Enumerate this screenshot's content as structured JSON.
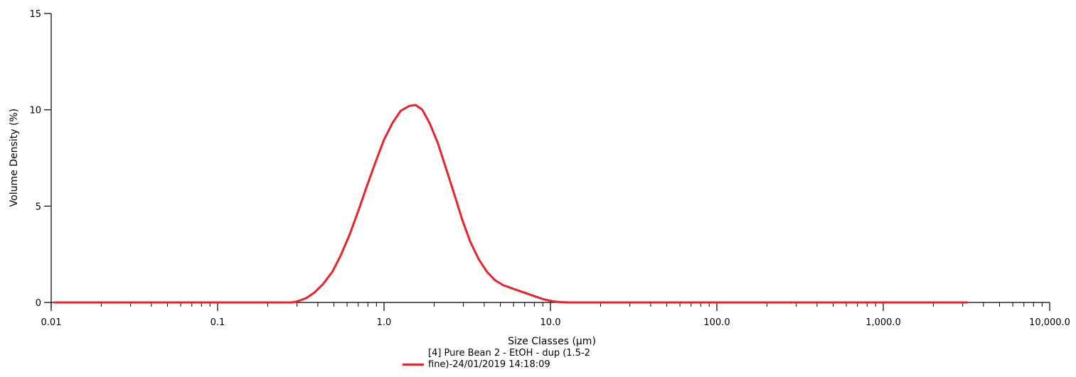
{
  "chart_data": {
    "type": "line",
    "xlabel": "Size Classes (μm)",
    "ylabel": "Volume Density (%)",
    "xscale": "log",
    "xlim": [
      0.01,
      10000
    ],
    "ylim": [
      0,
      15
    ],
    "x_ticks": [
      0.01,
      0.1,
      1.0,
      10.0,
      100.0,
      1000.0,
      10000.0
    ],
    "x_tick_labels": [
      "0.01",
      "0.1",
      "1.0",
      "10.0",
      "100.0",
      "1,000.0",
      "10,000.0"
    ],
    "y_ticks": [
      0,
      5,
      10,
      15
    ],
    "y_tick_labels": [
      "0",
      "5",
      "10",
      "15"
    ],
    "grid": false,
    "legend_position": "bottom-center",
    "series": [
      {
        "name": "[4] Pure Bean 2 - EtOH - dup (1.5-2 fine)-24/01/2019 14:18:09",
        "color": "#e8232a",
        "x": [
          0.0105,
          0.05,
          0.1,
          0.2,
          0.28,
          0.3,
          0.34,
          0.38,
          0.43,
          0.49,
          0.55,
          0.62,
          0.7,
          0.79,
          0.89,
          1.0,
          1.13,
          1.26,
          1.42,
          1.55,
          1.7,
          1.88,
          2.1,
          2.35,
          2.65,
          2.95,
          3.3,
          3.7,
          4.15,
          4.65,
          5.2,
          5.8,
          6.5,
          7.3,
          8.2,
          9.2,
          10.3,
          11.5,
          13.0,
          14.5,
          20,
          100,
          1000,
          3200
        ],
        "y": [
          0,
          0,
          0,
          0,
          0,
          0.05,
          0.22,
          0.5,
          0.95,
          1.6,
          2.45,
          3.5,
          4.75,
          6.05,
          7.3,
          8.45,
          9.35,
          9.95,
          10.2,
          10.25,
          10.0,
          9.3,
          8.3,
          7.0,
          5.6,
          4.3,
          3.15,
          2.25,
          1.6,
          1.15,
          0.9,
          0.75,
          0.6,
          0.45,
          0.3,
          0.15,
          0.06,
          0.02,
          0,
          0,
          0,
          0,
          0,
          0
        ]
      }
    ]
  }
}
